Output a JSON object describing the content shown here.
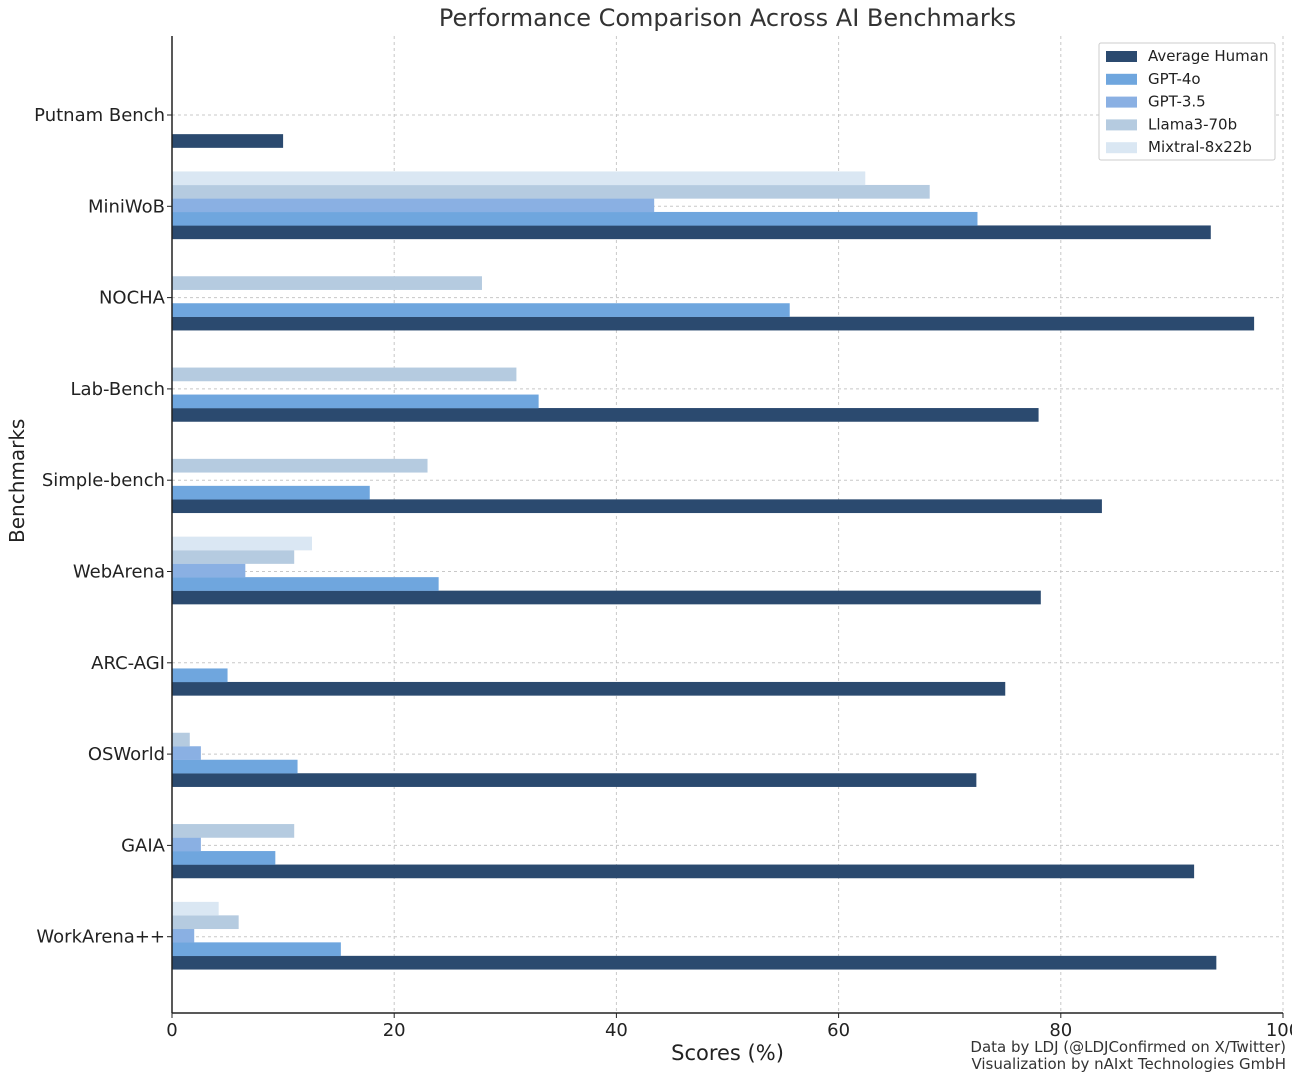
{
  "chart_data": {
    "type": "bar",
    "orientation": "horizontal",
    "title": "Performance Comparison Across AI Benchmarks",
    "xlabel": "Scores (%)",
    "ylabel": "Benchmarks",
    "xlim": [
      0,
      100
    ],
    "xticks": [
      0,
      20,
      40,
      60,
      80,
      100
    ],
    "grid": true,
    "legend_position": "top-right",
    "categories": [
      "Putnam Bench",
      "MiniWoB",
      "NOCHA",
      "Lab-Bench",
      "Simple-bench",
      "WebArena",
      "ARC-AGI",
      "OSWorld",
      "GAIA",
      "WorkArena++"
    ],
    "series": [
      {
        "name": "Average Human",
        "color": "#2b4a6f",
        "values": [
          10,
          93.5,
          97.4,
          78,
          83.7,
          78.2,
          75,
          72.4,
          92,
          94
        ]
      },
      {
        "name": "GPT-4o",
        "color": "#6fa6de",
        "values": [
          null,
          72.5,
          55.6,
          33,
          17.8,
          24,
          5,
          11.3,
          9.3,
          15.2
        ]
      },
      {
        "name": "GPT-3.5",
        "color": "#8ab0e3",
        "values": [
          null,
          43.4,
          null,
          null,
          null,
          6.6,
          null,
          2.6,
          2.6,
          2
        ]
      },
      {
        "name": "Llama3-70b",
        "color": "#b5cbe0",
        "values": [
          null,
          68.2,
          27.9,
          31,
          23,
          11,
          0,
          1.6,
          11,
          6
        ]
      },
      {
        "name": "Mixtral-8x22b",
        "color": "#dae7f3",
        "values": [
          null,
          62.4,
          null,
          null,
          null,
          12.6,
          null,
          null,
          null,
          4.2
        ]
      }
    ]
  },
  "footer": {
    "credit_line1": "Data by LDJ (@LDJConfirmed on X/Twitter)",
    "credit_line2": "Visualization by nAIxt Technologies GmbH"
  }
}
